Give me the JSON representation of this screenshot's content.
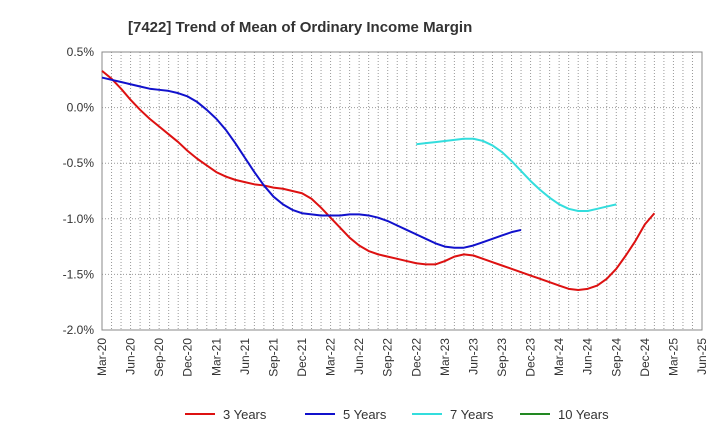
{
  "chart_data": {
    "type": "line",
    "title": "[7422]  Trend of Mean of Ordinary Income Margin",
    "xlabel": "",
    "ylabel": "",
    "x_ticks": [
      "Mar-20",
      "Jun-20",
      "Sep-20",
      "Dec-20",
      "Mar-21",
      "Jun-21",
      "Sep-21",
      "Dec-21",
      "Mar-22",
      "Jun-22",
      "Sep-22",
      "Dec-22",
      "Mar-23",
      "Jun-23",
      "Sep-23",
      "Dec-23",
      "Mar-24",
      "Jun-24",
      "Sep-24",
      "Dec-24",
      "Mar-25",
      "Jun-25"
    ],
    "y_ticks": [
      "0.5%",
      "0.0%",
      "-0.5%",
      "-1.0%",
      "-1.5%",
      "-2.0%"
    ],
    "ylim": [
      -2.0,
      0.5
    ],
    "grid": true,
    "legend_position": "bottom",
    "series": [
      {
        "name": "3 Years",
        "color": "#dd1111",
        "points": [
          [
            "Mar-20",
            0.33
          ],
          [
            "Apr-20",
            0.26
          ],
          [
            "May-20",
            0.17
          ],
          [
            "Jun-20",
            0.07
          ],
          [
            "Jul-20",
            -0.02
          ],
          [
            "Aug-20",
            -0.1
          ],
          [
            "Sep-20",
            -0.17
          ],
          [
            "Oct-20",
            -0.24
          ],
          [
            "Nov-20",
            -0.31
          ],
          [
            "Dec-20",
            -0.39
          ],
          [
            "Jan-21",
            -0.46
          ],
          [
            "Feb-21",
            -0.52
          ],
          [
            "Mar-21",
            -0.58
          ],
          [
            "Apr-21",
            -0.62
          ],
          [
            "May-21",
            -0.65
          ],
          [
            "Jun-21",
            -0.67
          ],
          [
            "Jul-21",
            -0.69
          ],
          [
            "Aug-21",
            -0.7
          ],
          [
            "Sep-21",
            -0.72
          ],
          [
            "Oct-21",
            -0.73
          ],
          [
            "Nov-21",
            -0.75
          ],
          [
            "Dec-21",
            -0.77
          ],
          [
            "Jan-22",
            -0.82
          ],
          [
            "Feb-22",
            -0.9
          ],
          [
            "Mar-22",
            -0.99
          ],
          [
            "Apr-22",
            -1.08
          ],
          [
            "May-22",
            -1.17
          ],
          [
            "Jun-22",
            -1.24
          ],
          [
            "Jul-22",
            -1.29
          ],
          [
            "Aug-22",
            -1.32
          ],
          [
            "Sep-22",
            -1.34
          ],
          [
            "Oct-22",
            -1.36
          ],
          [
            "Nov-22",
            -1.38
          ],
          [
            "Dec-22",
            -1.4
          ],
          [
            "Jan-23",
            -1.41
          ],
          [
            "Feb-23",
            -1.41
          ],
          [
            "Mar-23",
            -1.38
          ],
          [
            "Apr-23",
            -1.34
          ],
          [
            "May-23",
            -1.32
          ],
          [
            "Jun-23",
            -1.33
          ],
          [
            "Jul-23",
            -1.36
          ],
          [
            "Aug-23",
            -1.39
          ],
          [
            "Sep-23",
            -1.42
          ],
          [
            "Oct-23",
            -1.45
          ],
          [
            "Nov-23",
            -1.48
          ],
          [
            "Dec-23",
            -1.51
          ],
          [
            "Jan-24",
            -1.54
          ],
          [
            "Feb-24",
            -1.57
          ],
          [
            "Mar-24",
            -1.6
          ],
          [
            "Apr-24",
            -1.63
          ],
          [
            "May-24",
            -1.64
          ],
          [
            "Jun-24",
            -1.63
          ],
          [
            "Jul-24",
            -1.6
          ],
          [
            "Aug-24",
            -1.54
          ],
          [
            "Sep-24",
            -1.45
          ],
          [
            "Oct-24",
            -1.33
          ],
          [
            "Nov-24",
            -1.2
          ],
          [
            "Dec-24",
            -1.05
          ],
          [
            "Jan-25",
            -0.95
          ]
        ]
      },
      {
        "name": "5 Years",
        "color": "#1111cc",
        "points": [
          [
            "Mar-20",
            0.27
          ],
          [
            "Apr-20",
            0.25
          ],
          [
            "May-20",
            0.23
          ],
          [
            "Jun-20",
            0.21
          ],
          [
            "Jul-20",
            0.19
          ],
          [
            "Aug-20",
            0.17
          ],
          [
            "Sep-20",
            0.16
          ],
          [
            "Oct-20",
            0.15
          ],
          [
            "Nov-20",
            0.13
          ],
          [
            "Dec-20",
            0.1
          ],
          [
            "Jan-21",
            0.05
          ],
          [
            "Feb-21",
            -0.02
          ],
          [
            "Mar-21",
            -0.1
          ],
          [
            "Apr-21",
            -0.2
          ],
          [
            "May-21",
            -0.32
          ],
          [
            "Jun-21",
            -0.45
          ],
          [
            "Jul-21",
            -0.58
          ],
          [
            "Aug-21",
            -0.7
          ],
          [
            "Sep-21",
            -0.8
          ],
          [
            "Oct-21",
            -0.87
          ],
          [
            "Nov-21",
            -0.92
          ],
          [
            "Dec-21",
            -0.95
          ],
          [
            "Jan-22",
            -0.96
          ],
          [
            "Feb-22",
            -0.97
          ],
          [
            "Mar-22",
            -0.97
          ],
          [
            "Apr-22",
            -0.97
          ],
          [
            "May-22",
            -0.96
          ],
          [
            "Jun-22",
            -0.96
          ],
          [
            "Jul-22",
            -0.97
          ],
          [
            "Aug-22",
            -0.99
          ],
          [
            "Sep-22",
            -1.02
          ],
          [
            "Oct-22",
            -1.06
          ],
          [
            "Nov-22",
            -1.1
          ],
          [
            "Dec-22",
            -1.14
          ],
          [
            "Jan-23",
            -1.18
          ],
          [
            "Feb-23",
            -1.22
          ],
          [
            "Mar-23",
            -1.25
          ],
          [
            "Apr-23",
            -1.26
          ],
          [
            "May-23",
            -1.26
          ],
          [
            "Jun-23",
            -1.24
          ],
          [
            "Jul-23",
            -1.21
          ],
          [
            "Aug-23",
            -1.18
          ],
          [
            "Sep-23",
            -1.15
          ],
          [
            "Oct-23",
            -1.12
          ],
          [
            "Nov-23",
            -1.1
          ]
        ]
      },
      {
        "name": "7 Years",
        "color": "#33dddd",
        "points": [
          [
            "Dec-22",
            -0.33
          ],
          [
            "Jan-23",
            -0.32
          ],
          [
            "Feb-23",
            -0.31
          ],
          [
            "Mar-23",
            -0.3
          ],
          [
            "Apr-23",
            -0.29
          ],
          [
            "May-23",
            -0.28
          ],
          [
            "Jun-23",
            -0.28
          ],
          [
            "Jul-23",
            -0.3
          ],
          [
            "Aug-23",
            -0.34
          ],
          [
            "Sep-23",
            -0.4
          ],
          [
            "Oct-23",
            -0.48
          ],
          [
            "Nov-23",
            -0.57
          ],
          [
            "Dec-23",
            -0.66
          ],
          [
            "Jan-24",
            -0.74
          ],
          [
            "Feb-24",
            -0.81
          ],
          [
            "Mar-24",
            -0.87
          ],
          [
            "Apr-24",
            -0.91
          ],
          [
            "May-24",
            -0.93
          ],
          [
            "Jun-24",
            -0.93
          ],
          [
            "Jul-24",
            -0.91
          ],
          [
            "Aug-24",
            -0.89
          ],
          [
            "Sep-24",
            -0.87
          ]
        ]
      },
      {
        "name": "10 Years",
        "color": "#228822",
        "points": []
      }
    ]
  }
}
